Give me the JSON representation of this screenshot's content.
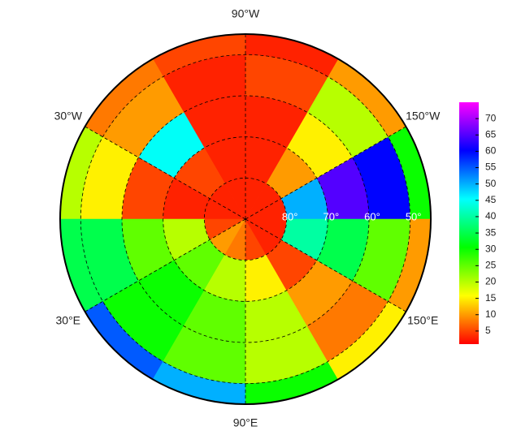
{
  "map": {
    "type": "polar-heatmap",
    "meridians": [
      {
        "value": -90,
        "label": "90°W"
      },
      {
        "value": -30,
        "label": "30°W"
      },
      {
        "value": -150,
        "label": "150°W"
      },
      {
        "value": 30,
        "label": "30°E"
      },
      {
        "value": 150,
        "label": "150°E"
      },
      {
        "value": 90,
        "label": "90°E"
      }
    ],
    "parallels": [
      {
        "value": 80,
        "label": "80°"
      },
      {
        "value": 70,
        "label": "70°"
      },
      {
        "value": 60,
        "label": "60°"
      },
      {
        "value": 50,
        "label": "50°"
      }
    ],
    "lat_edges": [
      90,
      80,
      70,
      60,
      50,
      45
    ],
    "lon_edges": [
      -180,
      -150,
      -120,
      -90,
      -60,
      -30,
      0,
      30,
      60,
      90,
      120,
      150,
      180
    ],
    "values": [
      [
        3,
        3,
        3,
        3,
        3,
        3,
        5,
        10,
        8,
        5,
        3,
        3
      ],
      [
        50,
        10,
        3,
        3,
        5,
        3,
        20,
        25,
        20,
        15,
        5,
        40
      ],
      [
        65,
        15,
        3,
        3,
        45,
        5,
        25,
        30,
        25,
        20,
        10,
        35
      ],
      [
        60,
        20,
        5,
        3,
        10,
        15,
        35,
        30,
        25,
        20,
        8,
        25
      ],
      [
        30,
        10,
        3,
        5,
        8,
        20,
        35,
        55,
        50,
        30,
        15,
        10
      ]
    ],
    "colorbar": {
      "zlim": [
        1,
        75
      ],
      "ticks": [
        5,
        10,
        15,
        20,
        25,
        30,
        35,
        40,
        45,
        50,
        55,
        60,
        65,
        70
      ]
    }
  }
}
